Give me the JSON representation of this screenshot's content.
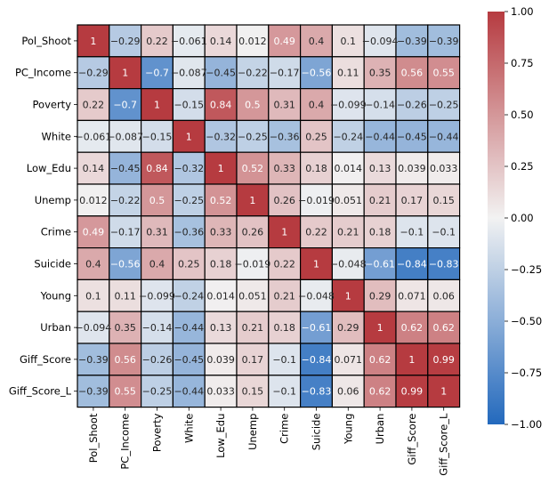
{
  "chart_data": {
    "type": "heatmap",
    "title": "",
    "labels": [
      "Pol_Shoot",
      "PC_Income",
      "Poverty",
      "White",
      "Low_Edu",
      "Unemp",
      "Crime",
      "Suicide",
      "Young",
      "Urban",
      "Giff_Score",
      "Giff_Score_L"
    ],
    "matrix": [
      [
        1,
        -0.29,
        0.22,
        -0.061,
        0.14,
        0.012,
        0.49,
        0.4,
        0.1,
        -0.094,
        -0.39,
        -0.39
      ],
      [
        -0.29,
        1,
        -0.7,
        -0.087,
        -0.45,
        -0.22,
        -0.17,
        -0.56,
        0.11,
        0.35,
        0.56,
        0.55
      ],
      [
        0.22,
        -0.7,
        1,
        -0.15,
        0.84,
        0.5,
        0.31,
        0.4,
        -0.099,
        -0.14,
        -0.26,
        -0.25
      ],
      [
        -0.061,
        -0.087,
        -0.15,
        1,
        -0.32,
        -0.25,
        -0.36,
        0.25,
        -0.24,
        -0.44,
        -0.45,
        -0.44
      ],
      [
        0.14,
        -0.45,
        0.84,
        -0.32,
        1,
        0.52,
        0.33,
        0.18,
        0.014,
        0.13,
        0.039,
        0.033
      ],
      [
        0.012,
        -0.22,
        0.5,
        -0.25,
        0.52,
        1,
        0.26,
        -0.019,
        0.051,
        0.21,
        0.17,
        0.15
      ],
      [
        0.49,
        -0.17,
        0.31,
        -0.36,
        0.33,
        0.26,
        1,
        0.22,
        0.21,
        0.18,
        -0.1,
        -0.1
      ],
      [
        0.4,
        -0.56,
        0.4,
        0.25,
        0.18,
        -0.019,
        0.22,
        1,
        -0.048,
        -0.61,
        -0.84,
        -0.83
      ],
      [
        0.1,
        0.11,
        -0.099,
        -0.24,
        0.014,
        0.051,
        0.21,
        -0.048,
        1,
        0.29,
        0.071,
        0.06
      ],
      [
        -0.094,
        0.35,
        -0.14,
        -0.44,
        0.13,
        0.21,
        0.18,
        -0.61,
        0.29,
        1,
        0.62,
        0.62
      ],
      [
        -0.39,
        0.56,
        -0.26,
        -0.45,
        0.039,
        0.17,
        -0.1,
        -0.84,
        0.071,
        0.62,
        1,
        0.99
      ],
      [
        -0.39,
        0.55,
        -0.25,
        -0.44,
        0.033,
        0.15,
        -0.1,
        -0.83,
        0.06,
        0.62,
        0.99,
        1
      ]
    ],
    "colorbar": {
      "range": [
        -1,
        1
      ],
      "ticks": [
        1,
        0.75,
        0.5,
        0.25,
        0,
        -0.25,
        -0.5,
        -0.75,
        -1
      ],
      "tick_labels": [
        "1.00",
        "0.75",
        "0.50",
        "0.25",
        "0.00",
        "−0.25",
        "−0.50",
        "−0.75",
        "−1.00"
      ],
      "colormap": "vlag"
    },
    "colors": {
      "low": "#2369bd",
      "mid": "#f2f2f2",
      "high": "#b63b40",
      "cell_border": "#000000",
      "text_dark": "#262626",
      "text_light": "#ffffff"
    },
    "grid": false,
    "legend": "colorbar-right"
  }
}
